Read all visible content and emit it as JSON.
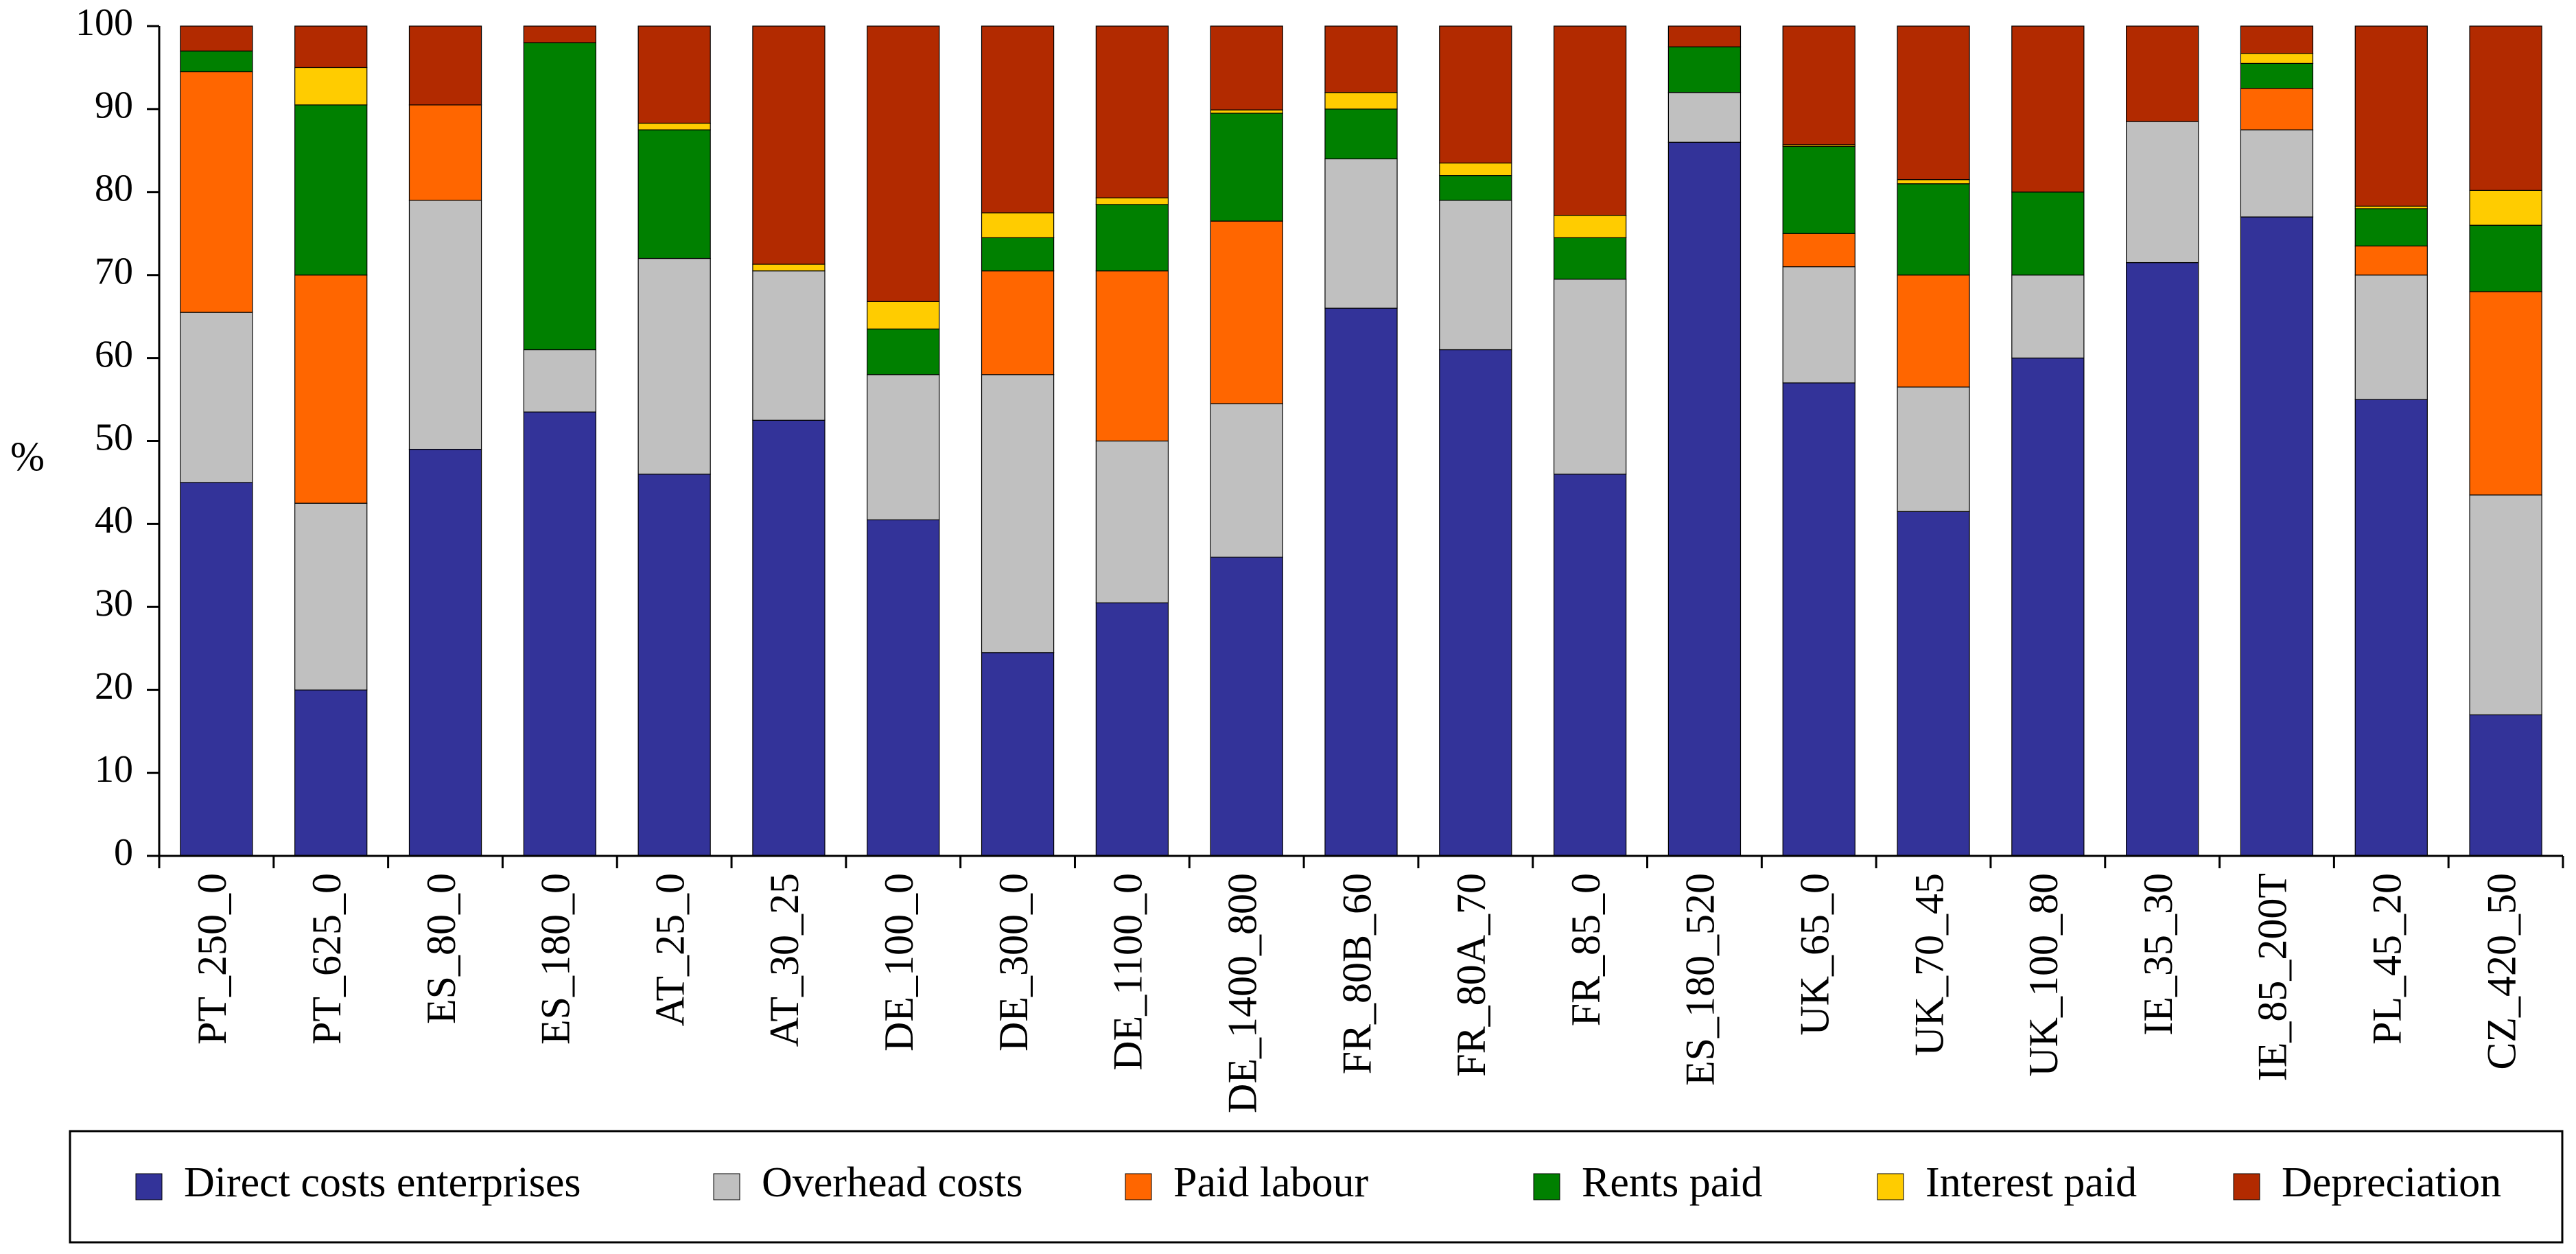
{
  "chart_data": {
    "type": "bar",
    "stacked": true,
    "title": "",
    "xlabel": "",
    "ylabel": "%",
    "ylim": [
      0,
      100
    ],
    "yticks": [
      0,
      10,
      20,
      30,
      40,
      50,
      60,
      70,
      80,
      90,
      100
    ],
    "grid": false,
    "legend_position": "bottom",
    "categories": [
      "PT_250_0",
      "PT_625_0",
      "ES_80_0",
      "ES_180_0",
      "AT_25_0",
      "AT_30_25",
      "DE_100_0",
      "DE_300_0",
      "DE_1100_0",
      "DE_1400_800",
      "FR_80B_60",
      "FR_80A_70",
      "FR_85_0",
      "ES_180_520",
      "UK_65_0",
      "UK_70_45",
      "UK_100_80",
      "IE_35_30",
      "IE_85_200T",
      "PL_45_20",
      "CZ_420_50"
    ],
    "series": [
      {
        "name": "Direct costs enterprises",
        "color": "#333399",
        "values": [
          45,
          20,
          49,
          53.5,
          46,
          52.5,
          40.5,
          24.5,
          30.5,
          36,
          66,
          61,
          46,
          86,
          57,
          41.5,
          60,
          71.5,
          77,
          55,
          17
        ]
      },
      {
        "name": "Overhead costs",
        "color": "#c0c0c0",
        "values": [
          20.5,
          22.5,
          30,
          7.5,
          26,
          18,
          17.5,
          33.5,
          19.5,
          18.5,
          18,
          18,
          23.5,
          6,
          14,
          15,
          10,
          17,
          10.5,
          15,
          26.5
        ]
      },
      {
        "name": "Paid labour",
        "color": "#ff6600",
        "values": [
          29,
          27.5,
          11.5,
          0,
          0,
          0,
          0,
          12.5,
          20.5,
          22,
          0,
          0,
          0,
          0,
          4,
          13.5,
          0,
          0,
          5,
          3.5,
          24.5
        ]
      },
      {
        "name": "Rents paid",
        "color": "#008000",
        "values": [
          2.5,
          20.5,
          0,
          37,
          15.5,
          0,
          5.5,
          4,
          8,
          13,
          6,
          3,
          5,
          5.5,
          10.5,
          11,
          10,
          0,
          3,
          4.5,
          8
        ]
      },
      {
        "name": "Interest paid",
        "color": "#ffcc00",
        "values": [
          0,
          4.5,
          0,
          0,
          0.8,
          0.8,
          3.3,
          3,
          0.8,
          0.4,
          2,
          1.5,
          2.7,
          0,
          0.2,
          0.5,
          0,
          0,
          1.2,
          0.3,
          4.2
        ]
      },
      {
        "name": "Depreciation",
        "color": "#b22a00",
        "values": [
          3,
          5,
          9.5,
          2,
          11.7,
          28.7,
          33.2,
          22.5,
          20.7,
          10.1,
          8,
          16.5,
          22.8,
          2.5,
          14.3,
          18.5,
          20,
          11.5,
          3.3,
          21.7,
          19.8
        ]
      }
    ]
  }
}
